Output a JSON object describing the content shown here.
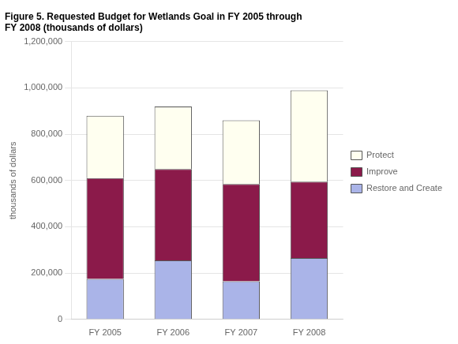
{
  "chart_data": {
    "type": "bar",
    "title": [
      "Figure 5. Requested Budget for Wetlands Goal in FY 2005 through",
      "FY 2008 (thousands of dollars)"
    ],
    "categories": [
      "FY 2005",
      "FY 2006",
      "FY 2007",
      "FY 2008"
    ],
    "series": [
      {
        "name": "Restore and Create",
        "color": "#aab4e8",
        "values": [
          175000,
          255000,
          165000,
          265000
        ]
      },
      {
        "name": "Improve",
        "color": "#8b1a4a",
        "values": [
          435000,
          395000,
          420000,
          330000
        ]
      },
      {
        "name": "Protect",
        "color": "#fffff0",
        "values": [
          270000,
          270000,
          275000,
          395000
        ]
      }
    ],
    "ylabel": "thousands of dollars",
    "ylim": [
      0,
      1200000
    ],
    "yticks": [
      0,
      {
        "value": 200000,
        "label": "200,000"
      },
      {
        "value": 400000,
        "label": "400,000"
      },
      {
        "value": 600000,
        "label": "600,000"
      },
      {
        "value": 800000,
        "label": "800,000"
      },
      {
        "value": 1000000,
        "label": "1,000,000"
      },
      {
        "value": 1200000,
        "label": "1,200,000"
      }
    ],
    "stacked": true,
    "grid": true,
    "legend": "right"
  }
}
